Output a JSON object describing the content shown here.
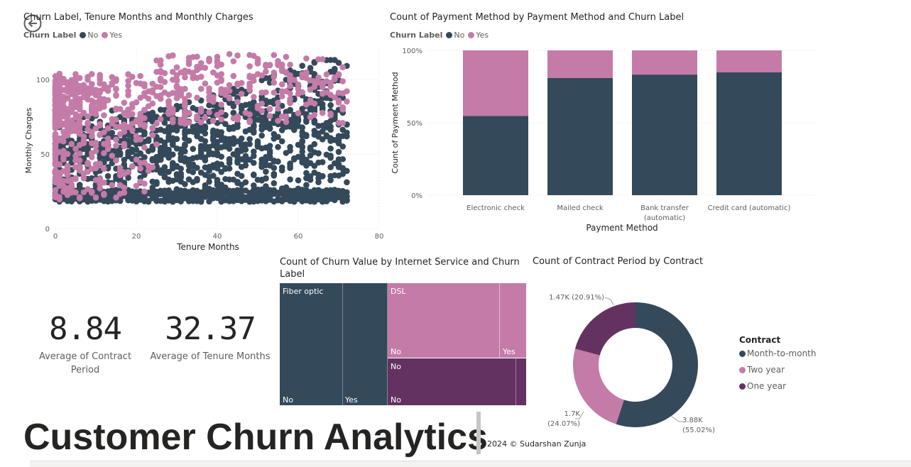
{
  "back_icon": "arrow-left-circle-icon",
  "colors": {
    "no": "#34495a",
    "yes": "#c47ba8",
    "one_year": "#643261",
    "text": "#252423",
    "muted": "#605e5c"
  },
  "scatter": {
    "title": "Churn Label, Tenure Months and Monthly Charges",
    "legend_title": "Churn Label",
    "legend": [
      "No",
      "Yes"
    ],
    "xlabel": "Tenure Months",
    "ylabel": "Monthly Charges",
    "xticks": [
      "0",
      "20",
      "40",
      "60",
      "80"
    ],
    "yticks": [
      "0",
      "50",
      "100"
    ]
  },
  "payment": {
    "title": "Count of Payment Method by Payment Method and Churn Label",
    "legend_title": "Churn Label",
    "legend": [
      "No",
      "Yes"
    ],
    "xlabel": "Payment Method",
    "ylabel": "Count of Payment Method",
    "yticks": [
      "0%",
      "50%",
      "100%"
    ],
    "cat_labels": [
      {
        "l1": "Electronic check",
        "l2": ""
      },
      {
        "l1": "Mailed check",
        "l2": ""
      },
      {
        "l1": "Bank transfer",
        "l2": "(automatic)"
      },
      {
        "l1": "Credit card (automatic)",
        "l2": ""
      }
    ]
  },
  "kpis": [
    {
      "value": "8.84",
      "l1": "Average of Contract",
      "l2": "Period"
    },
    {
      "value": "32.37",
      "l1": "Average of Tenure Months",
      "l2": ""
    }
  ],
  "treemap": {
    "title_l1": "Count of Churn Value by Internet Service and Churn",
    "title_l2": "Label",
    "groups": {
      "fiber": "Fiber optic",
      "dsl": "DSL",
      "no": "No"
    },
    "sub": {
      "fiber_no": "No",
      "fiber_yes": "Yes",
      "dsl_no": "No",
      "dsl_yes": "Yes",
      "none_no": "No"
    }
  },
  "donut": {
    "title": "Count of Contract Period by Contract",
    "legend_title": "Contract",
    "legend": [
      "Month-to-month",
      "Two year",
      "One year"
    ],
    "labels": [
      {
        "l1": "3.88K",
        "l2": "(55.02%)"
      },
      {
        "l1": "1.7K",
        "l2": "(24.07%)"
      },
      {
        "l1": "1.47K (20.91%)",
        "l2": ""
      }
    ]
  },
  "footer": {
    "title": "Customer Churn Analytics",
    "credit": "2024 © Sudarshan Zunja"
  },
  "chart_data": [
    {
      "type": "scatter",
      "title": "Churn Label, Tenure Months and Monthly Charges",
      "xlabel": "Tenure Months",
      "ylabel": "Monthly Charges",
      "xlim": [
        0,
        80
      ],
      "ylim": [
        0,
        120
      ],
      "series": [
        {
          "name": "No",
          "color": "#34495a",
          "x_range": [
            0,
            72
          ],
          "y_range": [
            18,
            119
          ]
        },
        {
          "name": "Yes",
          "color": "#c47ba8",
          "x_range": [
            0,
            72
          ],
          "y_range": [
            19,
            118
          ]
        }
      ]
    },
    {
      "type": "bar",
      "stacked": "100%",
      "title": "Count of Payment Method by Payment Method and Churn Label",
      "categories": [
        "Electronic check",
        "Mailed check",
        "Bank transfer (automatic)",
        "Credit card (automatic)"
      ],
      "xlabel": "Payment Method",
      "ylabel": "Count of Payment Method",
      "series": [
        {
          "name": "No",
          "values": [
            54.7,
            80.9,
            83.3,
            84.8
          ]
        },
        {
          "name": "Yes",
          "values": [
            45.3,
            19.1,
            16.7,
            15.2
          ]
        }
      ]
    },
    {
      "type": "treemap",
      "title": "Count of Churn Value by Internet Service and Churn Label",
      "groups": [
        {
          "name": "Fiber optic",
          "children": [
            {
              "name": "No",
              "value": 1799
            },
            {
              "name": "Yes",
              "value": 1297
            }
          ]
        },
        {
          "name": "DSL",
          "children": [
            {
              "name": "No",
              "value": 1962
            },
            {
              "name": "Yes",
              "value": 459
            }
          ]
        },
        {
          "name": "No",
          "children": [
            {
              "name": "No",
              "value": 1413
            },
            {
              "name": "Yes",
              "value": 113
            }
          ]
        }
      ]
    },
    {
      "type": "pie",
      "donut": true,
      "title": "Count of Contract Period by Contract",
      "categories": [
        "Month-to-month",
        "Two year",
        "One year"
      ],
      "values": [
        3880,
        1700,
        1470
      ],
      "percent": [
        55.02,
        24.07,
        20.91
      ]
    }
  ]
}
